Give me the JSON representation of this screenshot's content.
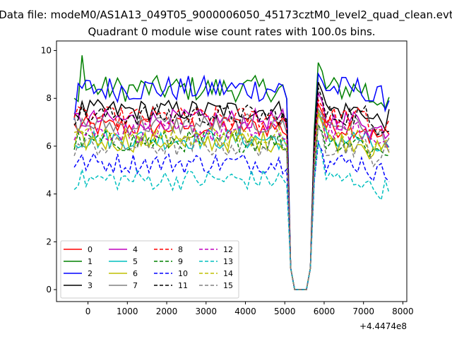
{
  "chart_data": {
    "type": "line",
    "suptitle": "Data file: modeM0/AS1A13_049T05_9000006050_45173cztM0_level2_quad_clean.evt",
    "title": "Quadrant 0 module wise count rates with 100.0s bins.",
    "xlabel": "",
    "ylabel": "",
    "offset_text": "+4.4474e8",
    "xlim": [
      -800,
      8100
    ],
    "ylim": [
      -0.5,
      10.4
    ],
    "xticks": [
      0,
      1000,
      2000,
      3000,
      4000,
      5000,
      6000,
      7000,
      8000
    ],
    "yticks": [
      0,
      2,
      4,
      6,
      8,
      10
    ],
    "legend_location": "lower-left",
    "legend_columns": 4,
    "x_start": -350,
    "x_step": 100,
    "gap_start": 5000,
    "gap_end": 5800,
    "series": [
      {
        "name": "0",
        "color": "#ff0000",
        "style": "solid",
        "mean": 6.8,
        "values_note": "fluctuates 6.3-7.5",
        "peak_after_gap": 8.0
      },
      {
        "name": "1",
        "color": "#008000",
        "style": "solid",
        "mean": 8.4,
        "start": 8.0,
        "max_before": 9.8,
        "peak_after_gap": 9.6
      },
      {
        "name": "2",
        "color": "#0000ff",
        "style": "solid",
        "mean": 8.4,
        "start": 7.1,
        "peak_after_gap": 9.1
      },
      {
        "name": "3",
        "color": "#000000",
        "style": "solid",
        "mean": 7.5,
        "peak_after_gap": 9.1
      },
      {
        "name": "4",
        "color": "#bf00bf",
        "style": "solid",
        "mean": 7.1,
        "peak_after_gap": 8.3
      },
      {
        "name": "5",
        "color": "#00bfbf",
        "style": "solid",
        "mean": 6.3,
        "peak_after_gap": 7.5
      },
      {
        "name": "6",
        "color": "#bfbf00",
        "style": "solid",
        "mean": 6.2,
        "peak_after_gap": 7.6
      },
      {
        "name": "7",
        "color": "#808080",
        "style": "solid",
        "mean": 6.9,
        "peak_after_gap": 7.8
      },
      {
        "name": "8",
        "color": "#ff0000",
        "style": "dashed",
        "mean": 7.2,
        "peak_after_gap": 8.1
      },
      {
        "name": "9",
        "color": "#008000",
        "style": "dashed",
        "mean": 6.2,
        "peak_after_gap": 7.0
      },
      {
        "name": "10",
        "color": "#0000ff",
        "style": "dashed",
        "mean": 5.3,
        "peak_after_gap": 6.5
      },
      {
        "name": "11",
        "color": "#000000",
        "style": "dashed",
        "mean": 7.3,
        "peak_after_gap": 8.5
      },
      {
        "name": "12",
        "color": "#bf00bf",
        "style": "dashed",
        "mean": 6.6,
        "peak_after_gap": 7.6
      },
      {
        "name": "13",
        "color": "#00bfbf",
        "style": "dashed",
        "mean": 4.6,
        "peak_after_gap": 6.5
      },
      {
        "name": "14",
        "color": "#bfbf00",
        "style": "dashed",
        "mean": 6.4,
        "peak_after_gap": 7.4
      },
      {
        "name": "15",
        "color": "#808080",
        "style": "dashed",
        "mean": 6.0,
        "peak_after_gap": 7.2
      }
    ]
  }
}
